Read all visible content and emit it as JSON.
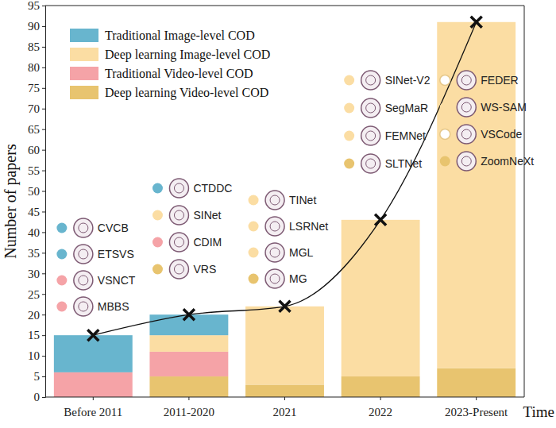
{
  "chart_data": {
    "type": "bar",
    "stacked": true,
    "legend": "upper left",
    "grid": false,
    "x_label": "Time",
    "y_label": "Number of papers",
    "categories": [
      "Before 2011",
      "2011-2020",
      "2021",
      "2022",
      "2023-Present"
    ],
    "ylim": [
      0,
      95
    ],
    "yticks": [
      0,
      5,
      10,
      15,
      20,
      25,
      30,
      35,
      40,
      45,
      50,
      55,
      60,
      65,
      70,
      75,
      80,
      85,
      90,
      95
    ],
    "series": [
      {
        "name": "Deep learning Video-level COD",
        "color": "#e8c46f",
        "values": [
          0,
          5,
          3,
          5,
          7
        ]
      },
      {
        "name": "Traditional Video-level COD",
        "color": "#f5a3a7",
        "values": [
          6,
          6,
          0,
          0,
          0
        ]
      },
      {
        "name": "Deep learning Image-level COD",
        "color": "#fbdda3",
        "values": [
          0,
          4,
          19,
          38,
          84
        ]
      },
      {
        "name": "Traditional Image-level COD",
        "color": "#68b5ce",
        "values": [
          9,
          5,
          0,
          0,
          0
        ]
      },
      {
        "type": "line",
        "color": "#111111",
        "marker": "x",
        "values": [
          15,
          20,
          22,
          43,
          91
        ]
      }
    ],
    "annotations": [
      [
        {
          "text": "CVCB",
          "color": "#68b5ce"
        },
        {
          "text": "ETSVS",
          "color": "#68b5ce"
        },
        {
          "text": "VSNCT",
          "color": "#f5a3a7"
        },
        {
          "text": "MBBS",
          "color": "#f5a3a7"
        }
      ],
      [
        {
          "text": "CTDDC",
          "color": "#68b5ce"
        },
        {
          "text": "SINet",
          "color": "#fbdda3"
        },
        {
          "text": "CDIM",
          "color": "#f5a3a7"
        },
        {
          "text": "VRS",
          "color": "#e8c46f"
        }
      ],
      [
        {
          "text": "TINet",
          "color": "#fbdda3"
        },
        {
          "text": "LSRNet",
          "color": "#fbdda3"
        },
        {
          "text": "MGL",
          "color": "#fbdda3"
        },
        {
          "text": "MG",
          "color": "#e8c46f"
        }
      ],
      [
        {
          "text": "SINet-V2",
          "color": "#fbdda3"
        },
        {
          "text": "SegMaR",
          "color": "#fbdda3"
        },
        {
          "text": "FEMNet",
          "color": "#fbdda3"
        },
        {
          "text": "SLTNet",
          "color": "#e8c46f"
        }
      ],
      [
        {
          "text": "FEDER",
          "color": "#ffffff"
        },
        {
          "text": "WS-SAM",
          "color": "#fbdda3"
        },
        {
          "text": "VSCode",
          "color": "#ffffff"
        },
        {
          "text": "ZoomNeXt",
          "color": "#e8c46f"
        }
      ]
    ]
  }
}
